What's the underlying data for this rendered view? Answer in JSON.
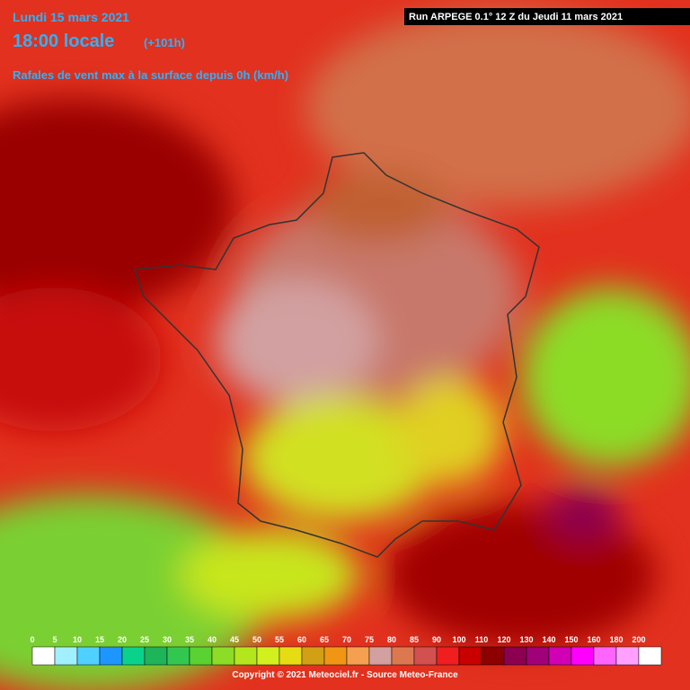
{
  "header": {
    "date": "Lundi 15 mars 2021",
    "time": "18:00 locale",
    "lead": "(+101h)",
    "field": "Rafales de vent max à la surface depuis 0h (km/h)",
    "run": "Run ARPEGE 0.1° 12 Z du Jeudi 11 mars 2021"
  },
  "legend": [
    {
      "value": 0,
      "color": "#ffffff"
    },
    {
      "value": 5,
      "color": "#a0f0ff"
    },
    {
      "value": 10,
      "color": "#50d0ff"
    },
    {
      "value": 15,
      "color": "#1e96ff"
    },
    {
      "value": 20,
      "color": "#0ad28c"
    },
    {
      "value": 25,
      "color": "#1eb45a"
    },
    {
      "value": 30,
      "color": "#32c850"
    },
    {
      "value": 35,
      "color": "#5ad232"
    },
    {
      "value": 40,
      "color": "#8cdc28"
    },
    {
      "value": 45,
      "color": "#b4e61e"
    },
    {
      "value": 50,
      "color": "#d2f01e"
    },
    {
      "value": 55,
      "color": "#e6dc14"
    },
    {
      "value": 60,
      "color": "#d2a014"
    },
    {
      "value": 65,
      "color": "#f09614"
    },
    {
      "value": 70,
      "color": "#f5a050"
    },
    {
      "value": 75,
      "color": "#d2a0a0"
    },
    {
      "value": 80,
      "color": "#dc7850"
    },
    {
      "value": 85,
      "color": "#d25050"
    },
    {
      "value": 90,
      "color": "#f01e1e"
    },
    {
      "value": 100,
      "color": "#c80000"
    },
    {
      "value": 110,
      "color": "#8c0000"
    },
    {
      "value": 120,
      "color": "#8c0050"
    },
    {
      "value": 130,
      "color": "#a00078"
    },
    {
      "value": 140,
      "color": "#d200b4"
    },
    {
      "value": 150,
      "color": "#ff00ff"
    },
    {
      "value": 160,
      "color": "#ff64ff"
    },
    {
      "value": 180,
      "color": "#ffa0ff"
    },
    {
      "value": 200,
      "color": "#ffffff"
    }
  ],
  "footer": "Copyright © 2021 Meteociel.fr - Source Meteo-France"
}
